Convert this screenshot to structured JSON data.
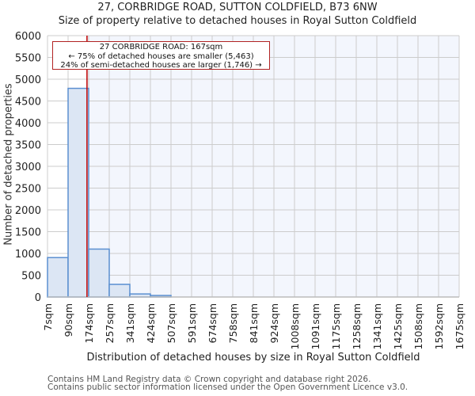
{
  "header": {
    "title": "27, CORBRIDGE ROAD, SUTTON COLDFIELD, B73 6NW",
    "subtitle": "Size of property relative to detached houses in Royal Sutton Coldfield"
  },
  "annotation": {
    "line1": "27 CORBRIDGE ROAD: 167sqm",
    "line2": "← 75% of detached houses are smaller (5,463)",
    "line3": "24% of semi-detached houses are larger (1,746) →"
  },
  "axes": {
    "xlabel": "Distribution of detached houses by size in Royal Sutton Coldfield",
    "ylabel": "Number of detached properties"
  },
  "footer": {
    "line1": "Contains HM Land Registry data © Crown copyright and database right 2026.",
    "line2": "Contains public sector information licensed under the Open Government Licence v3.0."
  },
  "colors": {
    "bar_fill": "#dce6f4",
    "bar_stroke": "#5b8fd0",
    "marker_line": "#c00000",
    "grid": "#cccccc",
    "highlight_bg": "#f3f6fd"
  },
  "chart_data": {
    "type": "bar",
    "title": "27, CORBRIDGE ROAD, SUTTON COLDFIELD, B73 6NW",
    "subtitle": "Size of property relative to detached houses in Royal Sutton Coldfield",
    "xlabel": "Distribution of detached houses by size in Royal Sutton Coldfield",
    "ylabel": "Number of detached properties",
    "categories": [
      "7sqm",
      "90sqm",
      "174sqm",
      "257sqm",
      "341sqm",
      "424sqm",
      "507sqm",
      "591sqm",
      "674sqm",
      "758sqm",
      "841sqm",
      "924sqm",
      "1008sqm",
      "1091sqm",
      "1175sqm",
      "1258sqm",
      "1341sqm",
      "1425sqm",
      "1508sqm",
      "1592sqm",
      "1675sqm"
    ],
    "values": [
      905,
      4790,
      1100,
      290,
      70,
      35,
      0,
      0,
      0,
      0,
      0,
      0,
      0,
      0,
      0,
      0,
      0,
      0,
      0,
      0
    ],
    "yticks": [
      0,
      500,
      1000,
      1500,
      2000,
      2500,
      3000,
      3500,
      4000,
      4500,
      5000,
      5500,
      6000
    ],
    "ylim": [
      0,
      6000
    ],
    "grid": true,
    "marker": {
      "value": 167,
      "label": "27 CORBRIDGE ROAD: 167sqm"
    }
  }
}
